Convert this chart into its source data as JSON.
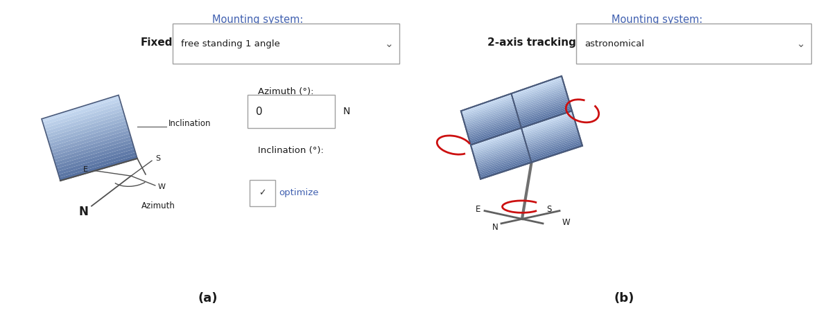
{
  "title_a": "Mounting system:",
  "title_b": "Mounting system:",
  "label_fixed": "Fixed",
  "label_dropdown_a": "free standing 1 angle",
  "label_2axis": "2-axis tracking",
  "label_dropdown_b": "astronomical",
  "azimuth_label": "Azimuth (°):",
  "azimuth_value": "0",
  "azimuth_dir": "N",
  "inclination_label": "Inclination (°):",
  "optimize_label": "optimize",
  "caption_a": "(a)",
  "caption_b": "(b)",
  "panel_color_mid": "#8aabda",
  "panel_color_light": "#ccdff5",
  "panel_color_dark": "#5570a0",
  "panel_edge": "#4a5a7a",
  "text_color_title": "#4060b0",
  "text_color_dark": "#1a1a1a",
  "text_color_label": "#4060b0",
  "red_arrow": "#cc1010",
  "gray_stand": "#707070",
  "gray_line": "#505050",
  "bg_color": "#ffffff",
  "dropdown_edge": "#a0a0a0",
  "chevron": "⌄"
}
